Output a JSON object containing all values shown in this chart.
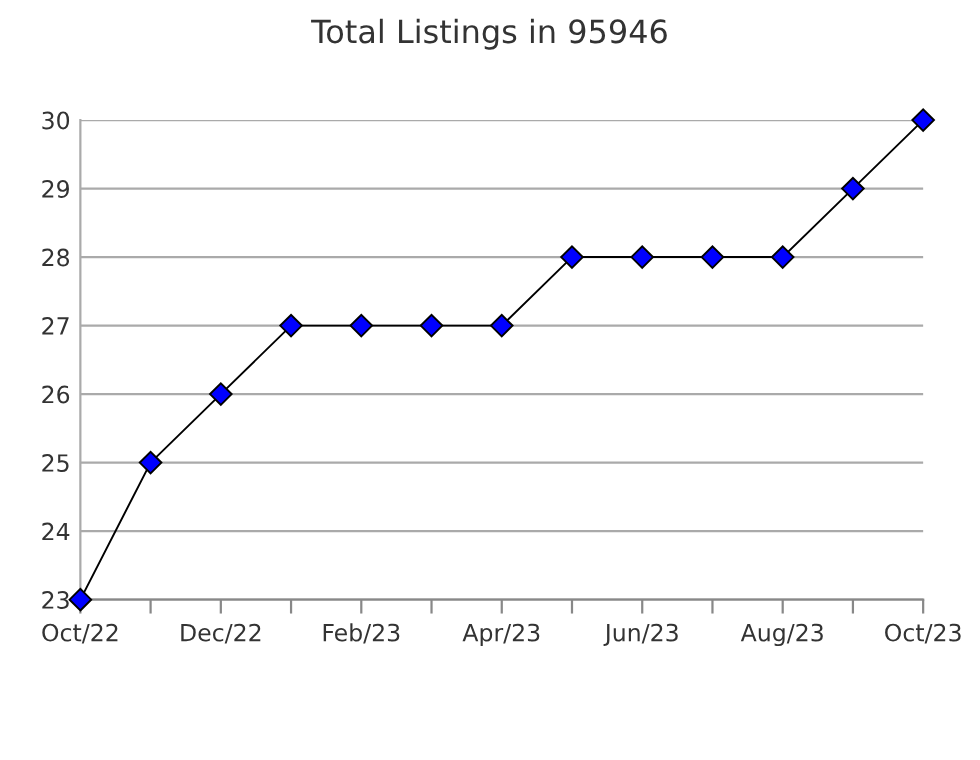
{
  "chart_data": {
    "type": "line",
    "title": "Total Listings in 95946",
    "categories": [
      "Oct/22",
      null,
      "Dec/22",
      null,
      "Feb/23",
      null,
      "Apr/23",
      null,
      "Jun/23",
      null,
      "Aug/23",
      null,
      "Oct/23"
    ],
    "series": [
      {
        "color": "#0000ff",
        "values": [
          23,
          25,
          26,
          27,
          27,
          27,
          27,
          28,
          28,
          28,
          28,
          29,
          30
        ]
      }
    ],
    "ylim": [
      23,
      30
    ],
    "yticks": [
      23,
      24,
      25,
      26,
      27,
      28,
      29,
      30
    ],
    "grid": "y",
    "marker": "diamond",
    "line_style": "solid"
  }
}
